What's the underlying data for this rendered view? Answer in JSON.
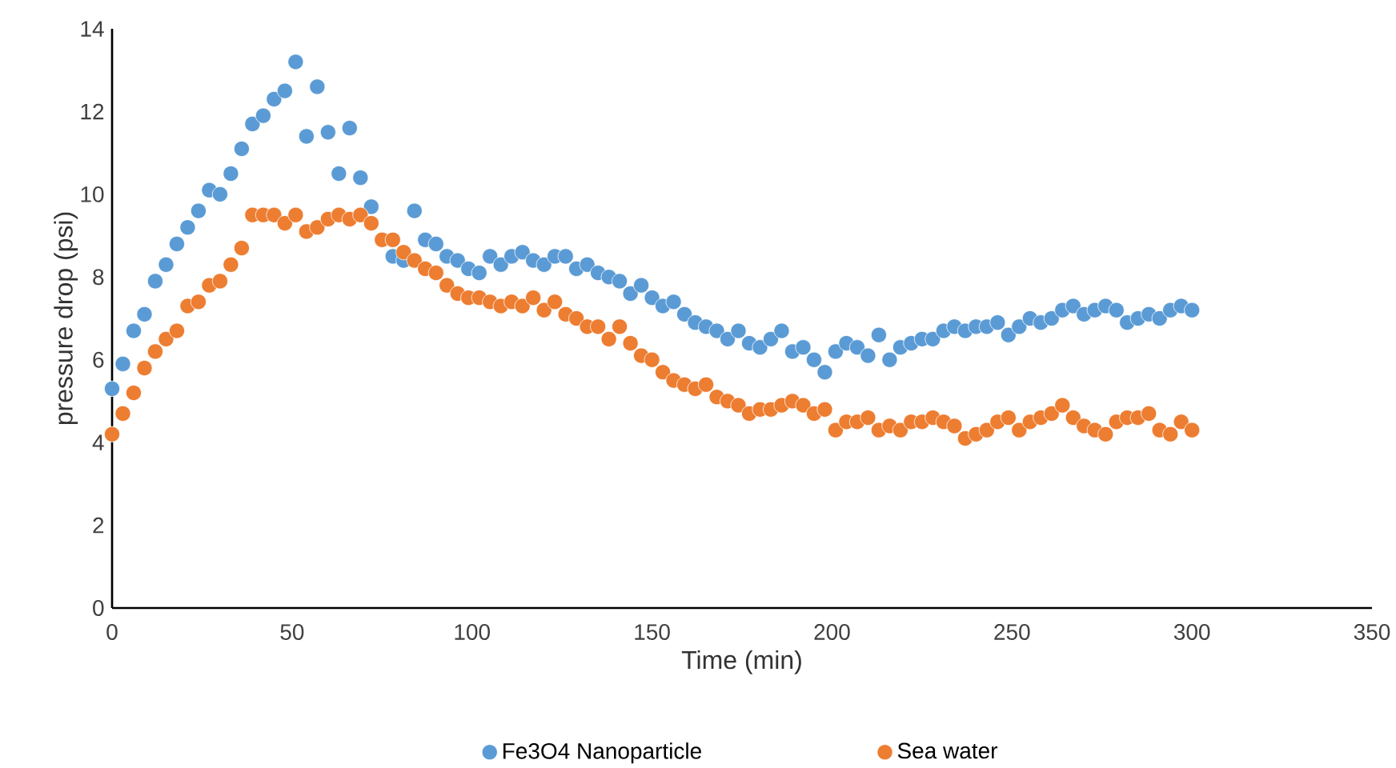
{
  "chart_data": {
    "type": "scatter",
    "xlabel": "Time (min)",
    "ylabel": "pressure drop (psi)",
    "x": [
      0,
      3,
      6,
      9,
      12,
      15,
      18,
      21,
      24,
      27,
      30,
      33,
      36,
      39,
      42,
      45,
      48,
      51,
      54,
      57,
      60,
      63,
      66,
      69,
      72,
      75,
      78,
      81,
      84,
      87,
      90,
      93,
      96,
      99,
      102,
      105,
      108,
      111,
      114,
      117,
      120,
      123,
      126,
      129,
      132,
      135,
      138,
      141,
      144,
      147,
      150,
      153,
      156,
      159,
      162,
      165,
      168,
      171,
      174,
      177,
      180,
      183,
      186,
      189,
      192,
      195,
      198,
      201,
      204,
      207,
      210,
      213,
      216,
      219,
      222,
      225,
      228,
      231,
      234,
      237,
      240,
      243,
      246,
      249,
      252,
      255,
      258,
      261,
      264,
      267,
      270,
      273,
      276,
      279,
      282,
      285,
      288,
      291,
      294,
      297,
      300
    ],
    "series": [
      {
        "name": "Fe3O4 Nanoparticle",
        "color": "#5b9bd5",
        "values": [
          5.3,
          5.9,
          6.7,
          7.1,
          7.9,
          8.3,
          8.8,
          9.2,
          9.6,
          10.1,
          10.0,
          10.5,
          11.1,
          11.7,
          11.9,
          12.3,
          12.5,
          13.2,
          11.4,
          12.6,
          11.5,
          10.5,
          11.6,
          10.4,
          9.7,
          null,
          8.5,
          8.4,
          9.6,
          8.9,
          8.8,
          8.5,
          8.4,
          8.2,
          8.1,
          8.5,
          8.3,
          8.5,
          8.6,
          8.4,
          8.3,
          8.5,
          8.5,
          8.2,
          8.3,
          8.1,
          8.0,
          7.9,
          7.6,
          7.8,
          7.5,
          7.3,
          7.4,
          7.1,
          6.9,
          6.8,
          6.7,
          6.5,
          6.7,
          6.4,
          6.3,
          6.5,
          6.7,
          6.2,
          6.3,
          6.0,
          5.7,
          6.2,
          6.4,
          6.3,
          6.1,
          6.6,
          6.0,
          6.3,
          6.4,
          6.5,
          6.5,
          6.7,
          6.8,
          6.7,
          6.8,
          6.8,
          6.9,
          6.6,
          6.8,
          7.0,
          6.9,
          7.0,
          7.2,
          7.3,
          7.1,
          7.2,
          7.3,
          7.2,
          6.9,
          7.0,
          7.1,
          7.0,
          7.2,
          7.3,
          7.2
        ]
      },
      {
        "name": "Sea water",
        "color": "#ed7d31",
        "values": [
          4.2,
          4.7,
          5.2,
          5.8,
          6.2,
          6.5,
          6.7,
          7.3,
          7.4,
          7.8,
          7.9,
          8.3,
          8.7,
          9.5,
          9.5,
          9.5,
          9.3,
          9.5,
          9.1,
          9.2,
          9.4,
          9.5,
          9.4,
          9.5,
          9.3,
          8.9,
          8.9,
          8.6,
          8.4,
          8.2,
          8.1,
          7.8,
          7.6,
          7.5,
          7.5,
          7.4,
          7.3,
          7.4,
          7.3,
          7.5,
          7.2,
          7.4,
          7.1,
          7.0,
          6.8,
          6.8,
          6.5,
          6.8,
          6.4,
          6.1,
          6.0,
          5.7,
          5.5,
          5.4,
          5.3,
          5.4,
          5.1,
          5.0,
          4.9,
          4.7,
          4.8,
          4.8,
          4.9,
          5.0,
          4.9,
          4.7,
          4.8,
          4.3,
          4.5,
          4.5,
          4.6,
          4.3,
          4.4,
          4.3,
          4.5,
          4.5,
          4.6,
          4.5,
          4.4,
          4.1,
          4.2,
          4.3,
          4.5,
          4.6,
          4.3,
          4.5,
          4.6,
          4.7,
          4.9,
          4.6,
          4.4,
          4.3,
          4.2,
          4.5,
          4.6,
          4.6,
          4.7,
          4.3,
          4.2,
          4.5,
          4.3
        ]
      }
    ],
    "xlim": [
      0,
      350
    ],
    "xticks": [
      0,
      50,
      100,
      150,
      200,
      250,
      300,
      350
    ],
    "ylim": [
      0,
      14
    ],
    "yticks": [
      0,
      2,
      4,
      6,
      8,
      10,
      12,
      14
    ],
    "grid": false,
    "legend": "bottom",
    "marker": "circle"
  }
}
